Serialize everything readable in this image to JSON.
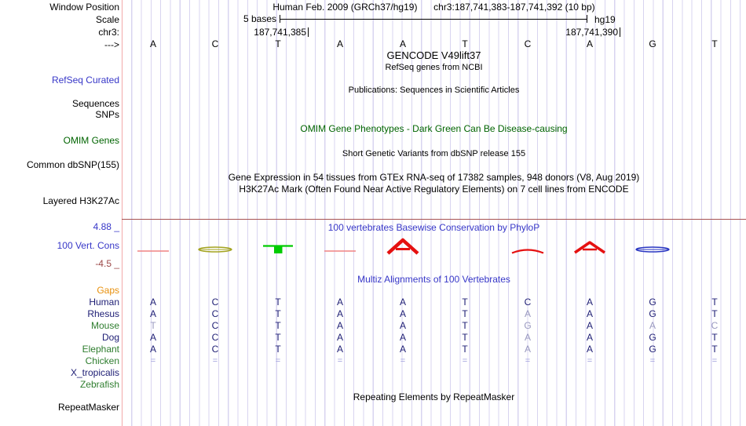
{
  "colors": {
    "accent_blue": "#3737c8",
    "navy": "#1d1d74",
    "green": "#2e7d2e",
    "dark_green": "#006400",
    "orange": "#e8900c",
    "dim_gray": "#9a9ac0",
    "gap_blue": "#9c9cdc",
    "min_red": "#9c4848",
    "grid_lavender": "#d8d4f0",
    "edge_pink": "#f2a9a9",
    "separator_red": "#a65252",
    "glyph_red": "#e51111",
    "glyph_light_red": "#f08484",
    "glyph_green": "#00cc00",
    "glyph_olive": "#a3a31f",
    "glyph_blue": "#2936c2"
  },
  "header": {
    "assembly_title": "Human Feb. 2009 (GRCh37/hg19)",
    "position_title": "chr3:187,741,383-187,741,392 (10 bp)",
    "window_position_label": "Window Position",
    "scale_label": "Scale",
    "scale_value": "5 bases",
    "assembly_tag": "hg19",
    "chrom_label": "chr3:",
    "strand_arrow": "--->",
    "coord_left": "187,741,385",
    "coord_right": "187,741,390"
  },
  "sequence": [
    "A",
    "C",
    "T",
    "A",
    "A",
    "T",
    "C",
    "A",
    "G",
    "T"
  ],
  "tracks": {
    "gencode": {
      "left_label": "RefSeq Curated",
      "title": "GENCODE V49lift37",
      "subtitle": "RefSeq genes from NCBI"
    },
    "publications": {
      "left_label_1": "Sequences",
      "left_label_2": "SNPs",
      "title": "Publications: Sequences in Scientific Articles"
    },
    "omim": {
      "left_label": "OMIM Genes",
      "title": "OMIM Gene Phenotypes - Dark Green Can Be Disease-causing"
    },
    "dbsnp": {
      "left_label": "Common dbSNP(155)",
      "title": "Short Genetic Variants from dbSNP release 155"
    },
    "gtex": {
      "title": "Gene Expression in 54 tissues from GTEx RNA-seq of 17382 samples, 948 donors (V8, Aug 2019)"
    },
    "h3k27ac": {
      "left_label": "Layered H3K27Ac",
      "title": "H3K27Ac Mark (Often Found Near Active Regulatory Elements) on 7 cell lines from ENCODE"
    },
    "conservation": {
      "left_label": "100 Vert. Cons",
      "title": "100 vertebrates Basewise Conservation by PhyloP",
      "axis_max": "4.88 _",
      "axis_min": "-4.5 _",
      "glyphs": [
        {
          "base_index": 0,
          "shape": "dash",
          "color": "glyph_light_red"
        },
        {
          "base_index": 1,
          "shape": "lens",
          "color": "glyph_olive"
        },
        {
          "base_index": 2,
          "shape": "tee",
          "color": "glyph_green"
        },
        {
          "base_index": 3,
          "shape": "dash",
          "color": "glyph_light_red"
        },
        {
          "base_index": 4,
          "shape": "letterA_large",
          "color": "glyph_red"
        },
        {
          "base_index": 6,
          "shape": "arc",
          "color": "glyph_red"
        },
        {
          "base_index": 7,
          "shape": "letterA_small",
          "color": "glyph_red"
        },
        {
          "base_index": 8,
          "shape": "lens",
          "color": "glyph_blue"
        }
      ]
    },
    "multiz": {
      "title": "Multiz Alignments of 100 Vertebrates",
      "rows": [
        {
          "species": "Gaps",
          "label_color": "orange",
          "bases": [],
          "dim": []
        },
        {
          "species": "Human",
          "label_color": "navy",
          "bases": [
            "A",
            "C",
            "T",
            "A",
            "A",
            "T",
            "C",
            "A",
            "G",
            "T"
          ],
          "dim": []
        },
        {
          "species": "Rhesus",
          "label_color": "navy",
          "bases": [
            "A",
            "C",
            "T",
            "A",
            "A",
            "T",
            "A",
            "A",
            "G",
            "T"
          ],
          "dim": [
            6
          ]
        },
        {
          "species": "Mouse",
          "label_color": "green",
          "bases": [
            "T",
            "C",
            "T",
            "A",
            "A",
            "T",
            "G",
            "A",
            "A",
            "C"
          ],
          "dim": [
            0,
            6,
            8,
            9
          ]
        },
        {
          "species": "Dog",
          "label_color": "navy",
          "bases": [
            "A",
            "C",
            "T",
            "A",
            "A",
            "T",
            "A",
            "A",
            "G",
            "T"
          ],
          "dim": [
            6
          ]
        },
        {
          "species": "Elephant",
          "label_color": "green",
          "bases": [
            "A",
            "C",
            "T",
            "A",
            "A",
            "T",
            "A",
            "A",
            "G",
            "T"
          ],
          "dim": [
            6
          ]
        },
        {
          "species": "Chicken",
          "label_color": "green",
          "bases": [
            "=",
            "=",
            "=",
            "=",
            "=",
            "=",
            "=",
            "=",
            "=",
            "="
          ],
          "dim": [],
          "gap_row": true
        },
        {
          "species": "X_tropicalis",
          "label_color": "navy",
          "bases": [],
          "dim": []
        },
        {
          "species": "Zebrafish",
          "label_color": "green",
          "bases": [],
          "dim": []
        }
      ]
    },
    "repeatmasker": {
      "left_label": "RepeatMasker",
      "title": "Repeating Elements by RepeatMasker"
    }
  }
}
